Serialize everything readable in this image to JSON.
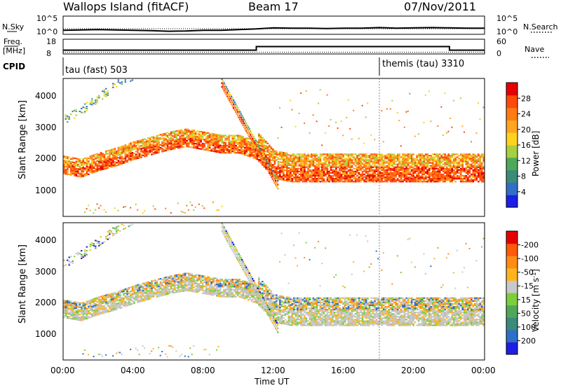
{
  "header": {
    "station": "Wallops Island (fitACF)",
    "beam": "Beam 17",
    "date": "07/Nov/2011"
  },
  "noise_panel": {
    "left_label": "N.Sky",
    "left_ticks": [
      "10^5",
      "10^0"
    ],
    "right_ticks": [
      "10^5",
      "10^0"
    ],
    "right_label": "N.Search"
  },
  "freq_panel": {
    "left_label": "Freq.",
    "left_unit": "[MHz]",
    "left_ticks": [
      "18",
      "8"
    ],
    "right_ticks": [
      "60",
      "0"
    ],
    "right_label": "Nave"
  },
  "cpid": {
    "label": "CPID",
    "segments": [
      {
        "name": "tau (fast) 503",
        "start_hour": 0,
        "end_hour": 18
      },
      {
        "name": "themis (tau) 3310",
        "start_hour": 18,
        "end_hour": 24
      }
    ]
  },
  "xaxis": {
    "label": "Time UT",
    "ticks": [
      "00:00",
      "04:00",
      "08:00",
      "12:00",
      "16:00",
      "20:00",
      "00:00"
    ]
  },
  "yaxis": {
    "label": "Slant Range [km]",
    "ticks": [
      "1000",
      "2000",
      "3000",
      "4000"
    ]
  },
  "power_colorbar": {
    "label": "Power [dB]",
    "ticks": [
      "4",
      "8",
      "12",
      "16",
      "20",
      "24",
      "28"
    ],
    "colors": [
      "#1e1ee6",
      "#2f6fc8",
      "#3d8a7a",
      "#4fa85a",
      "#a6d040",
      "#ffd21e",
      "#ffa51e",
      "#ff7b14",
      "#ff4a0a",
      "#e60000"
    ]
  },
  "velocity_colorbar": {
    "label": "Velocity [m s",
    "label_sup": "-1",
    "label_end": "]",
    "ticks": [
      "200",
      "100",
      "50",
      "15",
      "-15",
      "-50",
      "-100",
      "-200"
    ],
    "colors": [
      "#1e1ee6",
      "#2f6fc8",
      "#3d8a7a",
      "#4fa85a",
      "#7ccf3a",
      "#c8c8c8",
      "#ffb41e",
      "#ff8c14",
      "#ff5a0a",
      "#e60000"
    ]
  },
  "chart_data": [
    {
      "type": "line",
      "title": "N.Sky / N.Search",
      "x": [
        0,
        1,
        2,
        3,
        4,
        5,
        6,
        7,
        8,
        9,
        10,
        11,
        12,
        13,
        14,
        15,
        16,
        17,
        18,
        19,
        20,
        21,
        22,
        23,
        24
      ],
      "series": [
        {
          "name": "N.Sky",
          "values": [
            1.0,
            1.1,
            1.2,
            1.1,
            1.0,
            0.9,
            0.7,
            0.8,
            1.0,
            1.0,
            1.2,
            1.4,
            1.7,
            1.6,
            1.6,
            1.5,
            1.6,
            1.6,
            1.8,
            1.6,
            1.7,
            1.8,
            1.7,
            1.6,
            1.6
          ]
        }
      ],
      "ylim": [
        0,
        5
      ]
    },
    {
      "type": "line",
      "title": "Freq / Nave",
      "x": [
        0,
        11,
        11,
        18,
        18,
        22,
        22,
        24
      ],
      "series": [
        {
          "name": "Freq.",
          "values": [
            10.3,
            10.3,
            13.0,
            13.0,
            13.0,
            13.0,
            10.3,
            10.3
          ]
        },
        {
          "name": "Nave",
          "values": [
            3,
            3,
            3,
            3,
            3,
            3,
            3,
            3
          ]
        }
      ],
      "ylim": [
        8,
        18
      ]
    },
    {
      "type": "heatmap",
      "title": "Power [dB]",
      "x_range": [
        0,
        24
      ],
      "ylim": [
        180,
        4500
      ],
      "bands": [
        {
          "from_hour": 0,
          "to_hour": 11,
          "range_start_km": [
            1500,
            1400,
            1600,
            1750,
            1950,
            2100,
            2250,
            2350,
            2250,
            2150,
            2150,
            1950
          ],
          "value_db": 26
        },
        {
          "from_hour": 11,
          "to_hour": 24,
          "range_start_km": [
            1950,
            1350,
            1250,
            1250,
            1250,
            1250,
            1250,
            1250,
            1250,
            1250,
            1250,
            1250,
            1250,
            1250
          ],
          "value_db": 27
        },
        {
          "from_hour": 0,
          "to_hour": 7,
          "range_start_km": [
            3100,
            3400,
            3800,
            4200,
            4500,
            4500,
            4500,
            4500
          ],
          "value_db": 18
        }
      ]
    },
    {
      "type": "heatmap",
      "title": "Velocity [m s-1]",
      "x_range": [
        0,
        24
      ],
      "ylim": [
        180,
        4500
      ],
      "dominant_value": 0
    }
  ]
}
